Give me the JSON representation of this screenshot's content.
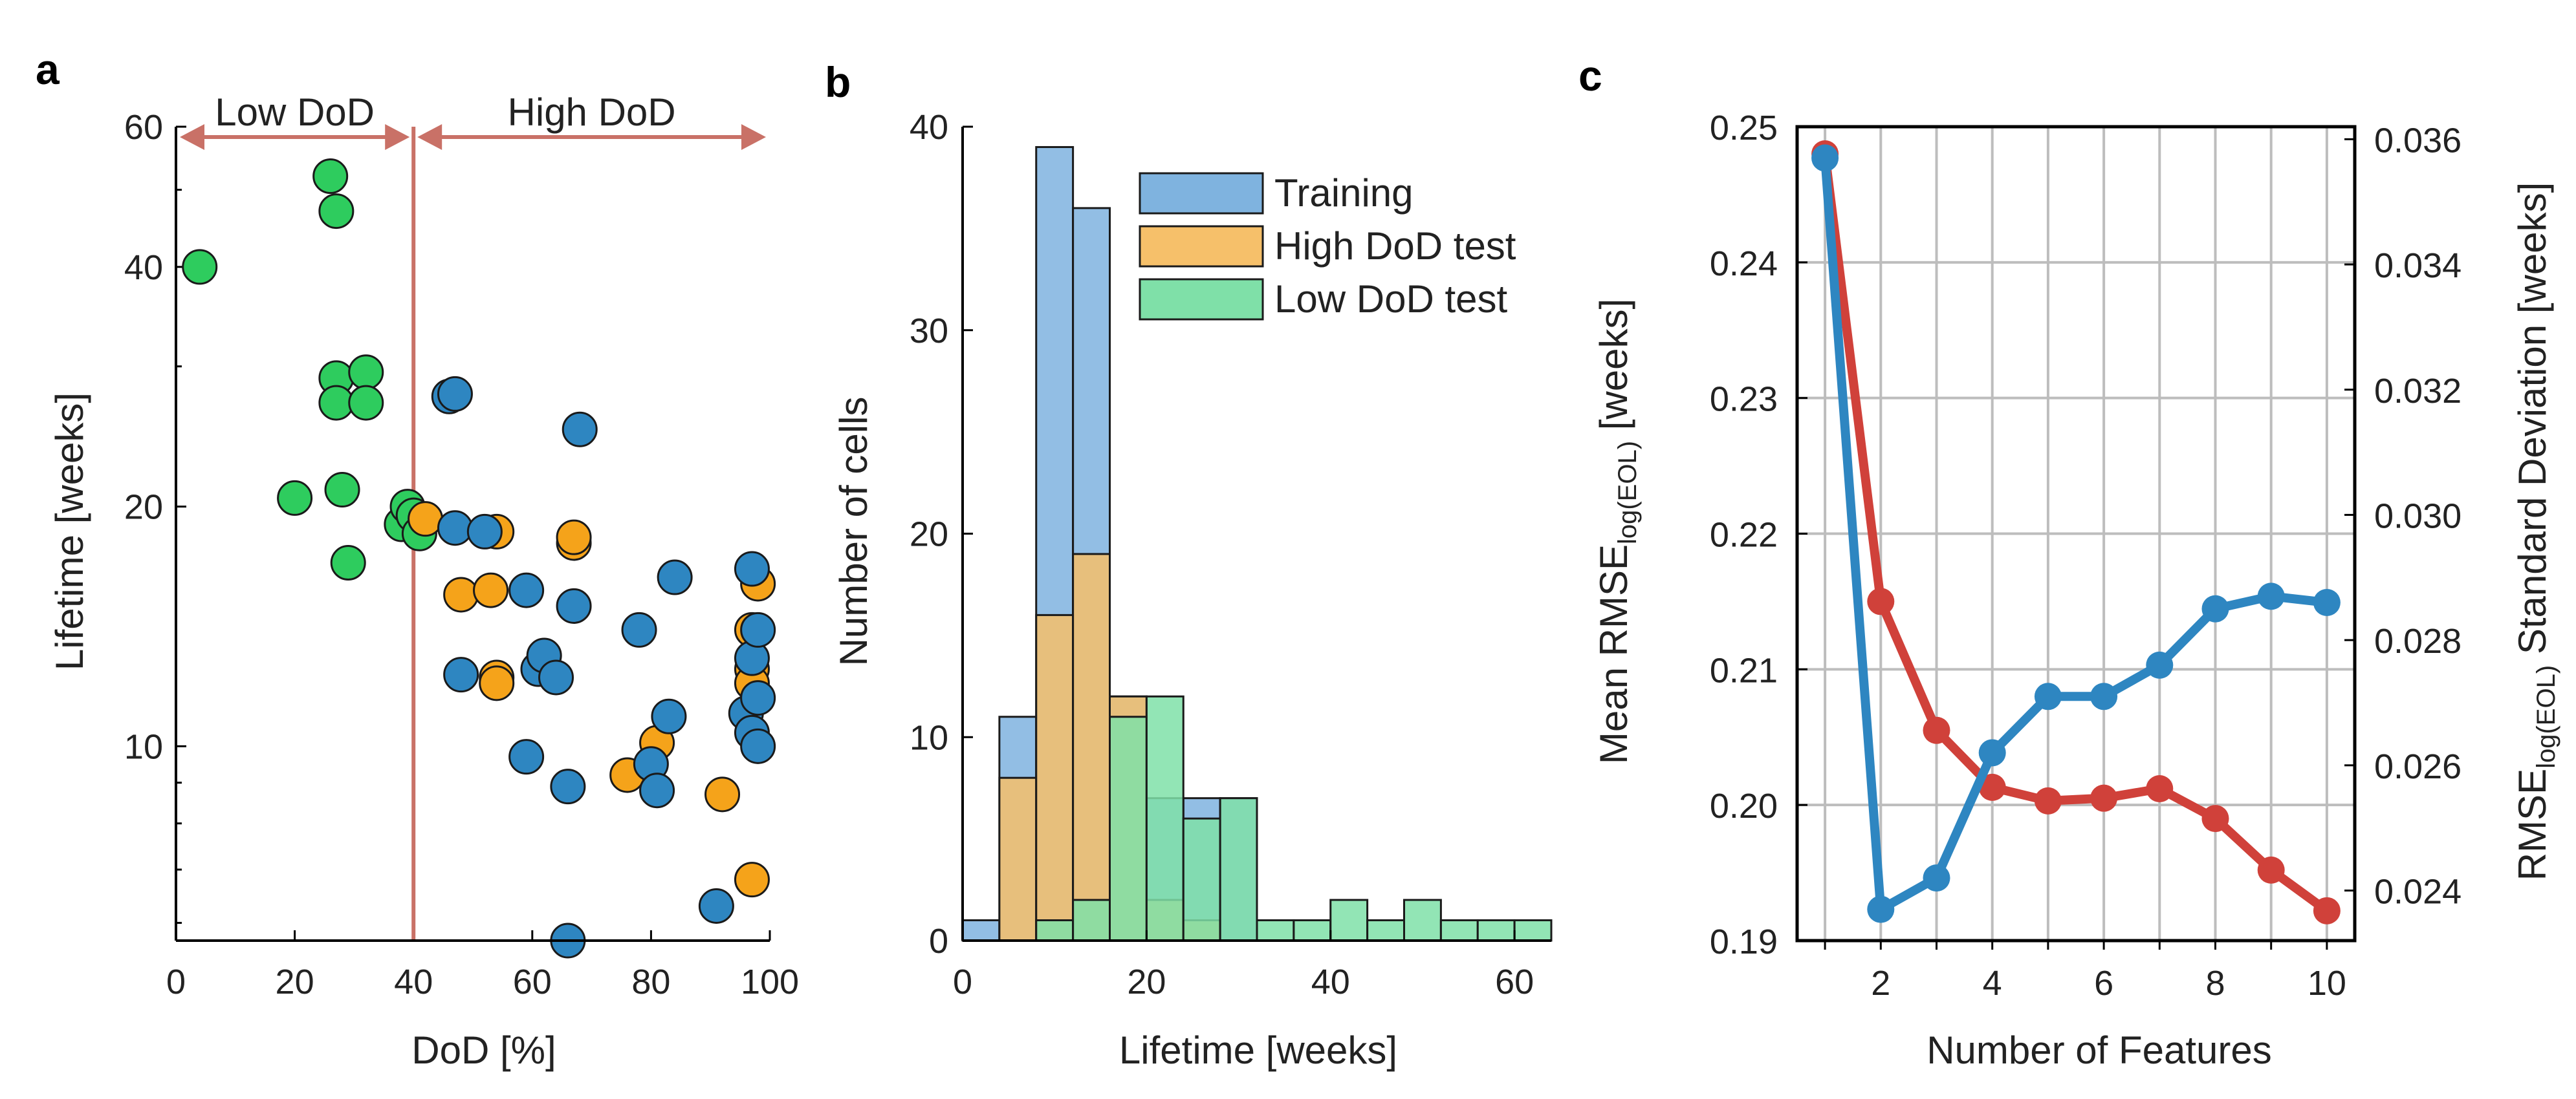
{
  "colors": {
    "green": "#2ECC5E",
    "orange": "#F5A31A",
    "blue": "#2E86C1",
    "red": "#D0413A",
    "annot": "#C97167",
    "training": "#7FB3DF",
    "high_test": "#F6C06A",
    "low_test": "#7FE0A8"
  },
  "chart_data": [
    {
      "panel": "a",
      "type": "scatter",
      "xlabel": "DoD [%]",
      "ylabel": "Lifetime [weeks]",
      "yscale": "log",
      "xlim": [
        0,
        100
      ],
      "ylim": [
        5.7,
        60
      ],
      "xticks": [
        "0",
        "20",
        "40",
        "60",
        "80",
        "100"
      ],
      "yticks": [
        "10",
        "20",
        "40",
        "60"
      ],
      "divider_x": 40,
      "annotations": [
        {
          "label": "Low DoD",
          "from": 0,
          "to": 40
        },
        {
          "label": "High DoD",
          "from": 40,
          "to": 100
        }
      ],
      "series": [
        {
          "name": "Low DoD",
          "color": "green",
          "points": [
            [
              4,
              40
            ],
            [
              26,
              52
            ],
            [
              27,
              47
            ],
            [
              27,
              29
            ],
            [
              27,
              27
            ],
            [
              28,
              21
            ],
            [
              20,
              20.5
            ],
            [
              29,
              17
            ],
            [
              32,
              29.5
            ],
            [
              32,
              27
            ],
            [
              38,
              19
            ],
            [
              39,
              20
            ],
            [
              40,
              19.5
            ],
            [
              41,
              18.5
            ]
          ]
        },
        {
          "name": "High DoD",
          "color": "orange",
          "points": [
            [
              42,
              19.3
            ],
            [
              48,
              15.5
            ],
            [
              53,
              15.7
            ],
            [
              54,
              12.2
            ],
            [
              54,
              12
            ],
            [
              54,
              18.6
            ],
            [
              67,
              18
            ],
            [
              67,
              18.3
            ],
            [
              76,
              9.2
            ],
            [
              81,
              10.1
            ],
            [
              92,
              8.7
            ],
            [
              97,
              14
            ],
            [
              97,
              12.5
            ],
            [
              97,
              12
            ],
            [
              98,
              16
            ],
            [
              97,
              6.8
            ]
          ]
        },
        {
          "name": "Training",
          "color": "blue",
          "points": [
            [
              46,
              27.5
            ],
            [
              47,
              27.7
            ],
            [
              47,
              18.8
            ],
            [
              48,
              12.3
            ],
            [
              52,
              18.6
            ],
            [
              59,
              15.7
            ],
            [
              59,
              9.7
            ],
            [
              61,
              12.5
            ],
            [
              62,
              13
            ],
            [
              64,
              12.2
            ],
            [
              66,
              8.9
            ],
            [
              67,
              15
            ],
            [
              68,
              25
            ],
            [
              66,
              5.7
            ],
            [
              78,
              14
            ],
            [
              80,
              9.5
            ],
            [
              81,
              8.8
            ],
            [
              83,
              10.9
            ],
            [
              84,
              16.3
            ],
            [
              91,
              6.3
            ],
            [
              96,
              11
            ],
            [
              97,
              10.4
            ],
            [
              97,
              12.9
            ],
            [
              97,
              16.7
            ],
            [
              98,
              14
            ],
            [
              98,
              11.5
            ],
            [
              98,
              10
            ]
          ]
        }
      ]
    },
    {
      "panel": "b",
      "type": "bar",
      "subtype": "histogram",
      "xlabel": "Lifetime [weeks]",
      "ylabel": "Number of cells",
      "xlim": [
        0,
        64
      ],
      "ylim": [
        0,
        40
      ],
      "xticks": [
        "0",
        "20",
        "40",
        "60"
      ],
      "yticks": [
        "0",
        "10",
        "20",
        "30",
        "40"
      ],
      "bin_width": 4,
      "bin_starts": [
        0,
        4,
        8,
        12,
        16,
        20,
        24,
        28,
        32,
        36,
        40,
        44,
        48,
        52,
        56,
        60
      ],
      "series": [
        {
          "name": "Training",
          "color": "training",
          "values": [
            1,
            11,
            39,
            36,
            12,
            7,
            7,
            7,
            0,
            0,
            0,
            0,
            0,
            0,
            0,
            0
          ]
        },
        {
          "name": "High DoD test",
          "color": "high_test",
          "values": [
            0,
            8,
            16,
            19,
            12,
            2,
            1,
            0,
            0,
            0,
            0,
            0,
            0,
            0,
            0,
            0
          ]
        },
        {
          "name": "Low DoD test",
          "color": "low_test",
          "values": [
            0,
            0,
            1,
            2,
            11,
            12,
            6,
            7,
            1,
            1,
            2,
            1,
            2,
            1,
            1,
            1
          ]
        }
      ],
      "legend": [
        "Training",
        "High DoD test",
        "Low DoD test"
      ],
      "legend_position": "top-right"
    },
    {
      "panel": "c",
      "type": "line",
      "xlabel": "Number of Features",
      "ylabel_left": "Mean RMSE",
      "ylabel_left_sub": "log(EOL)",
      "ylabel_left_tail": " [weeks]",
      "ylabel_right": "RMSE",
      "ylabel_right_sub": "log(EOL)",
      "ylabel_right_tail": " Standard Deviation [weeks]",
      "x": [
        1,
        2,
        3,
        4,
        5,
        6,
        7,
        8,
        9,
        10
      ],
      "xlim": [
        0.5,
        10.5
      ],
      "xticks": [
        "2",
        "4",
        "6",
        "8",
        "10"
      ],
      "grid": true,
      "series": [
        {
          "name": "Mean RMSE",
          "axis": "left",
          "color": "red",
          "values": [
            0.248,
            0.215,
            0.2055,
            0.2013,
            0.2003,
            0.2005,
            0.2012,
            0.199,
            0.1952,
            0.1922
          ]
        },
        {
          "name": "Std Dev",
          "axis": "right",
          "color": "blue",
          "values": [
            0.0357,
            0.0237,
            0.0242,
            0.0262,
            0.0271,
            0.0271,
            0.0276,
            0.0285,
            0.0287,
            0.0286
          ]
        }
      ],
      "ylim_left": [
        0.19,
        0.25
      ],
      "yticks_left": [
        "0.19",
        "0.20",
        "0.21",
        "0.22",
        "0.23",
        "0.24",
        "0.25"
      ],
      "ylim_right": [
        0.0232,
        0.0362
      ],
      "yticks_right": [
        "0.024",
        "0.026",
        "0.028",
        "0.030",
        "0.032",
        "0.034",
        "0.036"
      ]
    }
  ]
}
